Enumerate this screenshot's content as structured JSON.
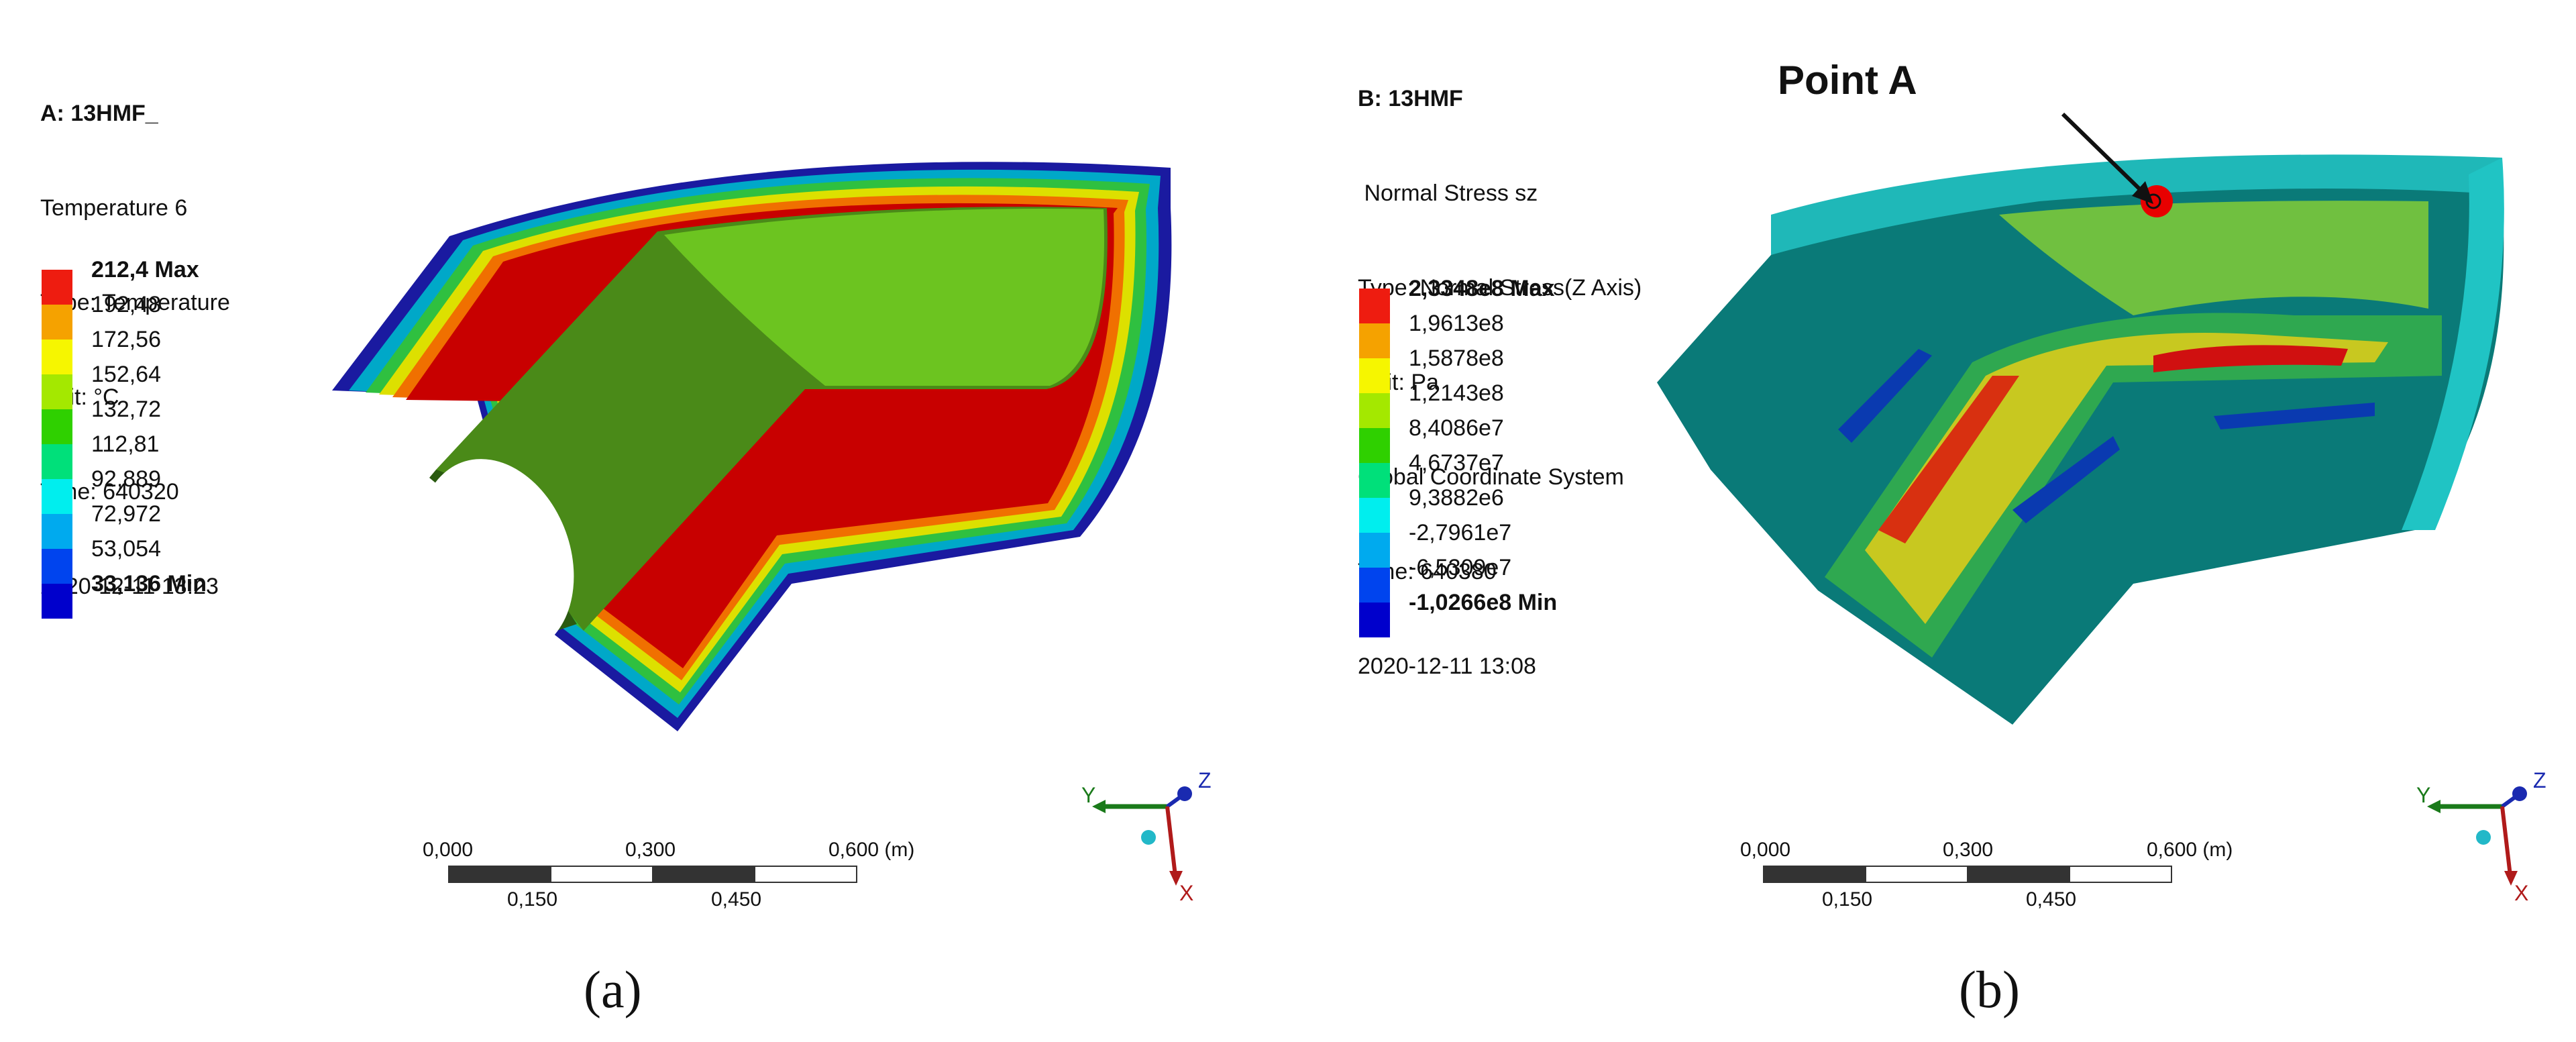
{
  "panel_a": {
    "info": {
      "title": "A: 13HMF_",
      "line1": "Temperature 6",
      "line2": "Type: Temperature",
      "line3": "Unit: °C",
      "line4": "Time: 640320",
      "line5": "2020-12-11 13:23"
    },
    "legend": [
      {
        "label": "212,4 Max",
        "color": "#ee1c10"
      },
      {
        "label": "192,48",
        "color": "#f5a200"
      },
      {
        "label": "172,56",
        "color": "#f6f600"
      },
      {
        "label": "152,64",
        "color": "#a4e800"
      },
      {
        "label": "132,72",
        "color": "#2fd000"
      },
      {
        "label": "112,81",
        "color": "#00e07a"
      },
      {
        "label": "92,889",
        "color": "#00eeee"
      },
      {
        "label": "72,972",
        "color": "#00aaee"
      },
      {
        "label": "53,054",
        "color": "#0044ee"
      },
      {
        "label": "33,136 Min",
        "color": "#0000cc"
      }
    ],
    "scale": {
      "t0": "0,000",
      "t1": "0,300",
      "t2": "0,600 (m)",
      "b1": "0,150",
      "b2": "0,450"
    },
    "caption": "(a)"
  },
  "panel_b": {
    "info": {
      "title": "B: 13HMF",
      "line1": " Normal Stress sz",
      "line2": "Type: Normal Stress(Z Axis)",
      "line3": "Unit: Pa",
      "line4": "Global Coordinate System",
      "line5": "Time: 640380",
      "line6": "2020-12-11 13:08"
    },
    "legend": [
      {
        "label": "2,3348e8 Max",
        "color": "#ee1c10"
      },
      {
        "label": "1,9613e8",
        "color": "#f5a200"
      },
      {
        "label": "1,5878e8",
        "color": "#f6f600"
      },
      {
        "label": "1,2143e8",
        "color": "#a4e800"
      },
      {
        "label": "8,4086e7",
        "color": "#2fd000"
      },
      {
        "label": "4,6737e7",
        "color": "#00e07a"
      },
      {
        "label": "9,3882e6",
        "color": "#00eeee"
      },
      {
        "label": "-2,7961e7",
        "color": "#00aaee"
      },
      {
        "label": "-6,5309e7",
        "color": "#0044ee"
      },
      {
        "label": "-1,0266e8 Min",
        "color": "#0000cc"
      }
    ],
    "annotation": "Point A",
    "scale": {
      "t0": "0,000",
      "t1": "0,300",
      "t2": "0,600 (m)",
      "b1": "0,150",
      "b2": "0,450"
    },
    "caption": "(b)"
  },
  "triad": {
    "y": "Y",
    "z": "Z",
    "x": "X"
  },
  "colors": {
    "axis_y": "#1a7a1a",
    "axis_z": "#1a2ab0",
    "axis_x": "#b01a1a",
    "origin": "#22b8c8"
  }
}
